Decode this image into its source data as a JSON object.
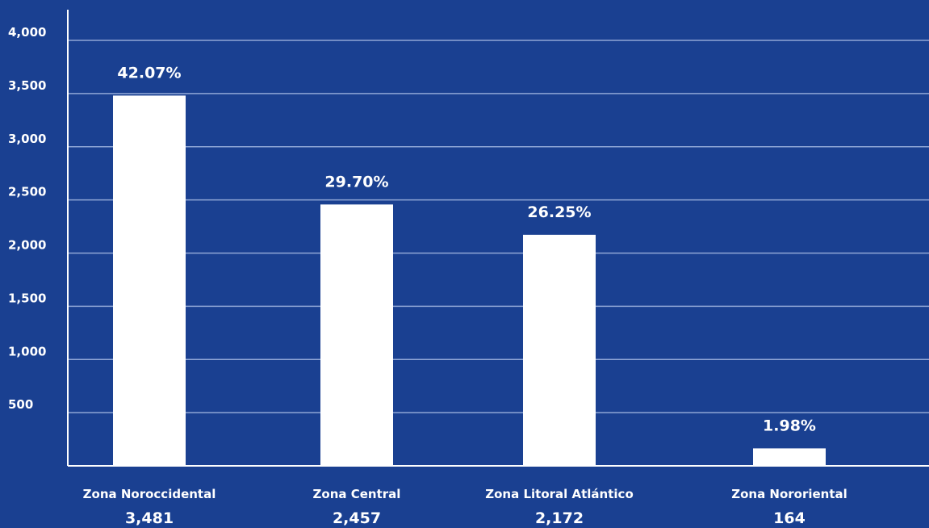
{
  "colors": {
    "background": "#1a4091",
    "bar": "#ffffff",
    "grid": "#8fa6d6",
    "text": "#ffffff"
  },
  "chart_data": {
    "type": "bar",
    "title": "",
    "xlabel": "",
    "ylabel": "",
    "categories": [
      "Zona Noroccidental",
      "Zona Central",
      "Zona Litoral Atlántico",
      "Zona Nororiental"
    ],
    "values": [
      3481,
      2457,
      2172,
      164
    ],
    "value_labels": [
      "3,481",
      "2,457",
      "2,172",
      "164"
    ],
    "percent_labels": [
      "42.07%",
      "29.70%",
      "26.25%",
      "1.98%"
    ],
    "ylim": [
      0,
      4000
    ],
    "yticks": [
      500,
      1000,
      1500,
      2000,
      2500,
      3000,
      3500,
      4000
    ],
    "ytick_labels": [
      "500",
      "1,000",
      "1,500",
      "2,000",
      "2,500",
      "3,000",
      "3,500",
      "4,000"
    ],
    "grid": true,
    "legend": "none"
  }
}
